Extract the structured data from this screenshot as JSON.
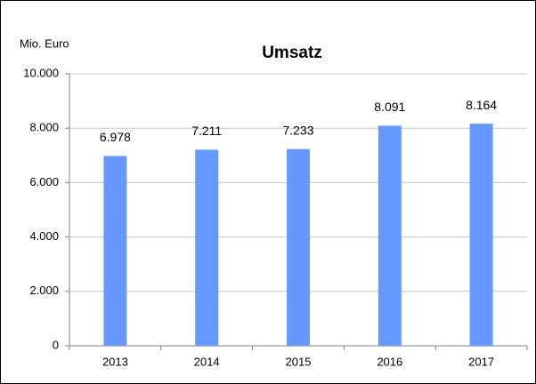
{
  "chart_data": {
    "type": "bar",
    "title": "Umsatz",
    "y_axis_label": "Mio. Euro",
    "categories": [
      "2013",
      "2014",
      "2015",
      "2016",
      "2017"
    ],
    "values": [
      6978,
      7211,
      7233,
      8091,
      8164
    ],
    "value_labels": [
      "6.978",
      "7.211",
      "7.233",
      "8.091",
      "8.164"
    ],
    "color": "#6699ff",
    "ylim": [
      0,
      10000
    ],
    "yticks": [
      0,
      {
        "value": 2000,
        "label": "2.000"
      },
      {
        "value": 4000,
        "label": "4.000"
      },
      {
        "value": 6000,
        "label": "6.000"
      },
      {
        "value": 8000,
        "label": "8.000"
      },
      {
        "value": 10000,
        "label": "10.000"
      }
    ],
    "grid": true
  }
}
